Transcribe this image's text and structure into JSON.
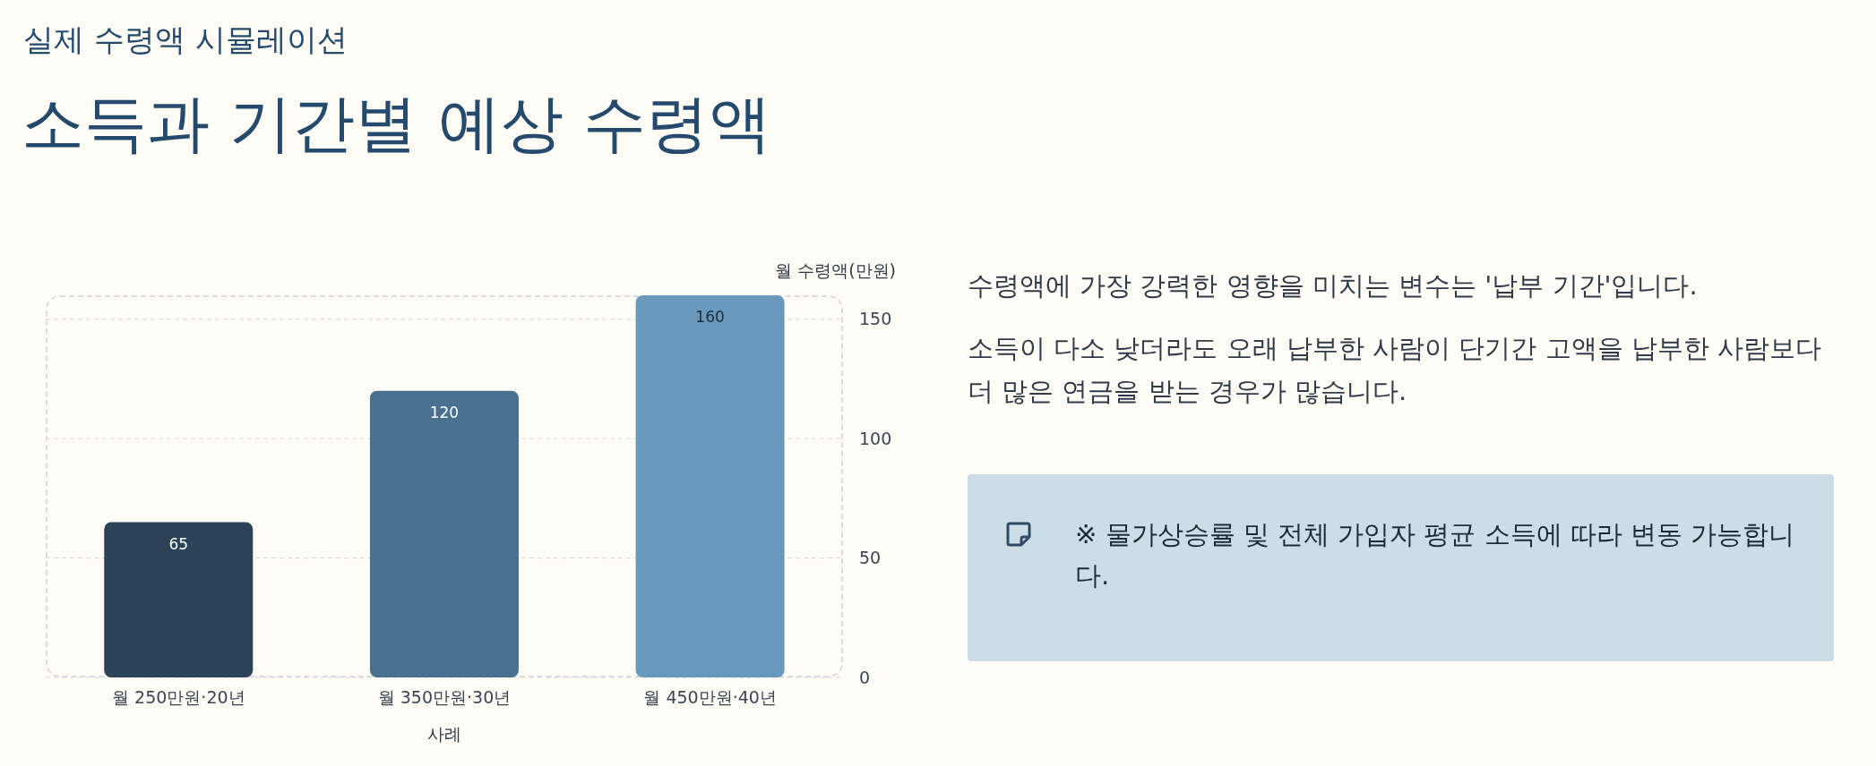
{
  "chart_data": {
    "type": "bar",
    "subtitle": "실제 수령액 시뮬레이션",
    "title": "소득과 기간별 예상 수령액",
    "categories": [
      "월 250만원·20년",
      "월 350만원·30년",
      "월 450만원·40년"
    ],
    "values": [
      65,
      120,
      160
    ],
    "colors": [
      "#2c4257",
      "#48708f",
      "#6a98bd"
    ],
    "xlabel": "사례",
    "ylabel": "월 수령액(만원)",
    "ylim": [
      0,
      160
    ],
    "yticks": [
      0,
      50,
      100,
      150
    ],
    "grid": "y",
    "data_labels": true,
    "annotations": [
      "수령액에 가장 강력한 영향을 미치는 변수는 '납부 기간'입니다.",
      "소득이 다소 낮더라도 오래 납부한 사람이 단기간 고액을 납부한 사람보다 더 많은 연금을 받는 경우가 많습니다.",
      "※ 물가상승률 및 전체 가입자 평균 소득에 따라 변동 가능합니다."
    ]
  }
}
